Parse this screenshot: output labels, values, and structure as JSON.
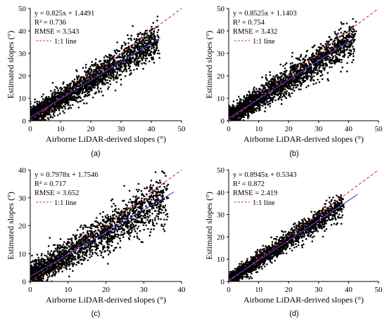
{
  "figure": {
    "colors": {
      "points": "#000000",
      "fit_line": "#5a3fd0",
      "identity_line": "#e03030",
      "axis": "#000000"
    }
  },
  "chart_data": [
    {
      "type": "scatter",
      "panel_label": "(a)",
      "xlabel": "Airborne LiDAR-derived slopes (°)",
      "ylabel": "Estimated slopes (°)",
      "xlim": [
        0,
        50
      ],
      "ylim": [
        0,
        50
      ],
      "xticks": [
        "0",
        "10",
        "20",
        "30",
        "40",
        "50"
      ],
      "yticks": [
        "0",
        "10",
        "20",
        "30",
        "40",
        "50"
      ],
      "grid": false,
      "annotations": {
        "equation": "y = 0.825x + 1.4491",
        "r2": "R² = 0.736",
        "rmse": "RMSE = 3.543",
        "identity_label": "1:1 line"
      },
      "fit": {
        "slope": 0.825,
        "intercept": 1.4491,
        "x_range": [
          0,
          43
        ]
      },
      "identity_line": {
        "x_range": [
          0,
          50
        ]
      },
      "point_cloud": {
        "count": 2300,
        "x_max": 42,
        "resid_sd": 3.5,
        "seed": 11
      },
      "series": [
        {
          "values_ref": "point_cloud"
        }
      ]
    },
    {
      "type": "scatter",
      "panel_label": "(b)",
      "xlabel": "Airborne LiDAR-derived slopes (°)",
      "ylabel": "Estimated slopes (°)",
      "xlim": [
        0,
        50
      ],
      "ylim": [
        0,
        50
      ],
      "xticks": [
        "0",
        "10",
        "20",
        "30",
        "40",
        "50"
      ],
      "yticks": [
        "0",
        "10",
        "20",
        "30",
        "40",
        "50"
      ],
      "grid": false,
      "annotations": {
        "equation": "y = 0.8525x + 1.1403",
        "r2": "R² = 0.754",
        "rmse": "RMSE = 3.432",
        "identity_label": "1:1 line"
      },
      "fit": {
        "slope": 0.8525,
        "intercept": 1.1403,
        "x_range": [
          0,
          42
        ]
      },
      "identity_line": {
        "x_range": [
          0,
          50
        ]
      },
      "point_cloud": {
        "count": 2300,
        "x_max": 42,
        "resid_sd": 3.4,
        "seed": 23
      },
      "series": [
        {
          "values_ref": "point_cloud"
        }
      ]
    },
    {
      "type": "scatter",
      "panel_label": "(c)",
      "xlabel": "Airborne LiDAR-derived slopes (°)",
      "ylabel": "Estimated slopes (°)",
      "xlim": [
        0,
        40
      ],
      "ylim": [
        0,
        40
      ],
      "xticks": [
        "0",
        "10",
        "20",
        "30",
        "40"
      ],
      "yticks": [
        "0",
        "10",
        "20",
        "30",
        "40"
      ],
      "grid": false,
      "annotations": {
        "equation": "y = 0.7978x + 1.7546",
        "r2": "R² = 0.717",
        "rmse": "RMSE = 3.652",
        "identity_label": "1:1 line"
      },
      "fit": {
        "slope": 0.7978,
        "intercept": 1.7546,
        "x_range": [
          0,
          38
        ]
      },
      "identity_line": {
        "x_range": [
          0,
          40
        ]
      },
      "point_cloud": {
        "count": 2100,
        "x_max": 36,
        "resid_sd": 3.6,
        "seed": 37
      },
      "series": [
        {
          "values_ref": "point_cloud"
        }
      ]
    },
    {
      "type": "scatter",
      "panel_label": "(d)",
      "xlabel": "Airborne LiDAR-derived slopes (°)",
      "ylabel": "Estimated slopes (°)",
      "xlim": [
        0,
        50
      ],
      "ylim": [
        0,
        50
      ],
      "xticks": [
        "0",
        "10",
        "20",
        "30",
        "40",
        "50"
      ],
      "yticks": [
        "0",
        "10",
        "20",
        "30",
        "40",
        "50"
      ],
      "grid": false,
      "annotations": {
        "equation": "y = 0.8945x + 0.5343",
        "r2": "R² = 0.872",
        "rmse": "RMSE = 2.419",
        "identity_label": "1:1 line"
      },
      "fit": {
        "slope": 0.8945,
        "intercept": 0.5343,
        "x_range": [
          0,
          43
        ]
      },
      "identity_line": {
        "x_range": [
          0,
          50
        ]
      },
      "point_cloud": {
        "count": 2000,
        "x_max": 38,
        "resid_sd": 2.4,
        "seed": 53
      },
      "series": [
        {
          "values_ref": "point_cloud"
        }
      ]
    }
  ]
}
